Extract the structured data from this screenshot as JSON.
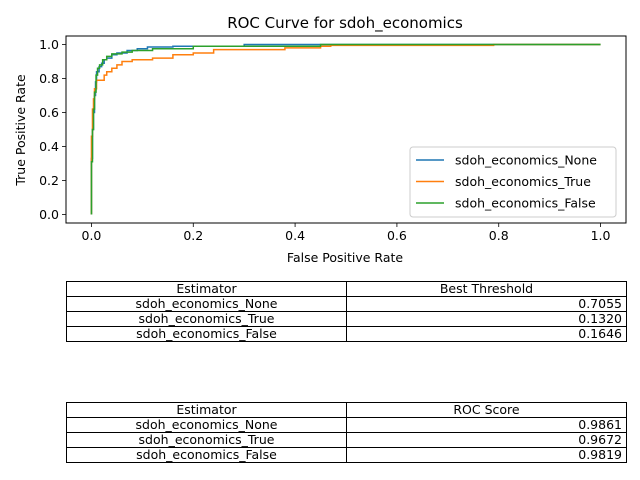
{
  "chart_data": {
    "type": "line",
    "title": "ROC Curve for sdoh_economics",
    "xlabel": "False Positive Rate",
    "ylabel": "True Positive Rate",
    "xlim": [
      -0.05,
      1.05
    ],
    "ylim": [
      -0.05,
      1.05
    ],
    "xticks": [
      "0.0",
      "0.2",
      "0.4",
      "0.6",
      "0.8",
      "1.0"
    ],
    "yticks": [
      "0.0",
      "0.2",
      "0.4",
      "0.6",
      "0.8",
      "1.0"
    ],
    "grid": false,
    "legend_position": "lower right",
    "series": [
      {
        "name": "sdoh_economics_None",
        "color": "#1f77b4",
        "x": [
          0,
          0,
          0.002,
          0.002,
          0.004,
          0.004,
          0.006,
          0.006,
          0.008,
          0.008,
          0.01,
          0.01,
          0.015,
          0.015,
          0.02,
          0.02,
          0.025,
          0.025,
          0.03,
          0.03,
          0.04,
          0.04,
          0.05,
          0.05,
          0.07,
          0.07,
          0.09,
          0.09,
          0.11,
          0.11,
          0.16,
          0.16,
          0.3,
          0.3,
          1.0
        ],
        "y": [
          0,
          0.33,
          0.33,
          0.5,
          0.5,
          0.6,
          0.6,
          0.7,
          0.7,
          0.78,
          0.78,
          0.84,
          0.84,
          0.87,
          0.87,
          0.89,
          0.89,
          0.91,
          0.91,
          0.92,
          0.92,
          0.94,
          0.94,
          0.95,
          0.95,
          0.965,
          0.965,
          0.975,
          0.975,
          0.985,
          0.985,
          0.99,
          0.99,
          1.0,
          1.0
        ]
      },
      {
        "name": "sdoh_economics_True",
        "color": "#ff7f0e",
        "x": [
          0,
          0,
          0.002,
          0.002,
          0.004,
          0.004,
          0.006,
          0.006,
          0.01,
          0.01,
          0.025,
          0.025,
          0.03,
          0.03,
          0.04,
          0.04,
          0.05,
          0.05,
          0.06,
          0.06,
          0.08,
          0.08,
          0.12,
          0.12,
          0.16,
          0.16,
          0.2,
          0.2,
          0.24,
          0.24,
          0.38,
          0.38,
          0.45,
          0.45,
          0.47,
          0.47,
          0.79,
          0.79,
          1.0
        ],
        "y": [
          0,
          0.46,
          0.46,
          0.62,
          0.62,
          0.68,
          0.68,
          0.74,
          0.74,
          0.79,
          0.79,
          0.82,
          0.82,
          0.84,
          0.84,
          0.86,
          0.86,
          0.88,
          0.88,
          0.9,
          0.9,
          0.91,
          0.91,
          0.92,
          0.92,
          0.94,
          0.94,
          0.95,
          0.95,
          0.97,
          0.97,
          0.98,
          0.98,
          0.99,
          0.99,
          0.995,
          0.995,
          1.0,
          1.0
        ]
      },
      {
        "name": "sdoh_economics_False",
        "color": "#2ca02c",
        "x": [
          0,
          0,
          0.002,
          0.002,
          0.004,
          0.004,
          0.006,
          0.006,
          0.009,
          0.009,
          0.012,
          0.012,
          0.016,
          0.016,
          0.022,
          0.022,
          0.03,
          0.03,
          0.04,
          0.04,
          0.06,
          0.06,
          0.08,
          0.08,
          0.12,
          0.12,
          0.2,
          0.2,
          0.45,
          0.45,
          1.0
        ],
        "y": [
          0,
          0.31,
          0.31,
          0.5,
          0.5,
          0.62,
          0.62,
          0.72,
          0.72,
          0.82,
          0.82,
          0.86,
          0.86,
          0.88,
          0.88,
          0.91,
          0.91,
          0.93,
          0.93,
          0.945,
          0.945,
          0.955,
          0.955,
          0.965,
          0.965,
          0.975,
          0.975,
          0.99,
          0.99,
          1.0,
          1.0
        ]
      }
    ]
  },
  "tables": [
    {
      "headers": [
        "Estimator",
        "Best Threshold"
      ],
      "rows": [
        [
          "sdoh_economics_None",
          "0.7055"
        ],
        [
          "sdoh_economics_True",
          "0.1320"
        ],
        [
          "sdoh_economics_False",
          "0.1646"
        ]
      ]
    },
    {
      "headers": [
        "Estimator",
        "ROC Score"
      ],
      "rows": [
        [
          "sdoh_economics_None",
          "0.9861"
        ],
        [
          "sdoh_economics_True",
          "0.9672"
        ],
        [
          "sdoh_economics_False",
          "0.9819"
        ]
      ]
    }
  ]
}
